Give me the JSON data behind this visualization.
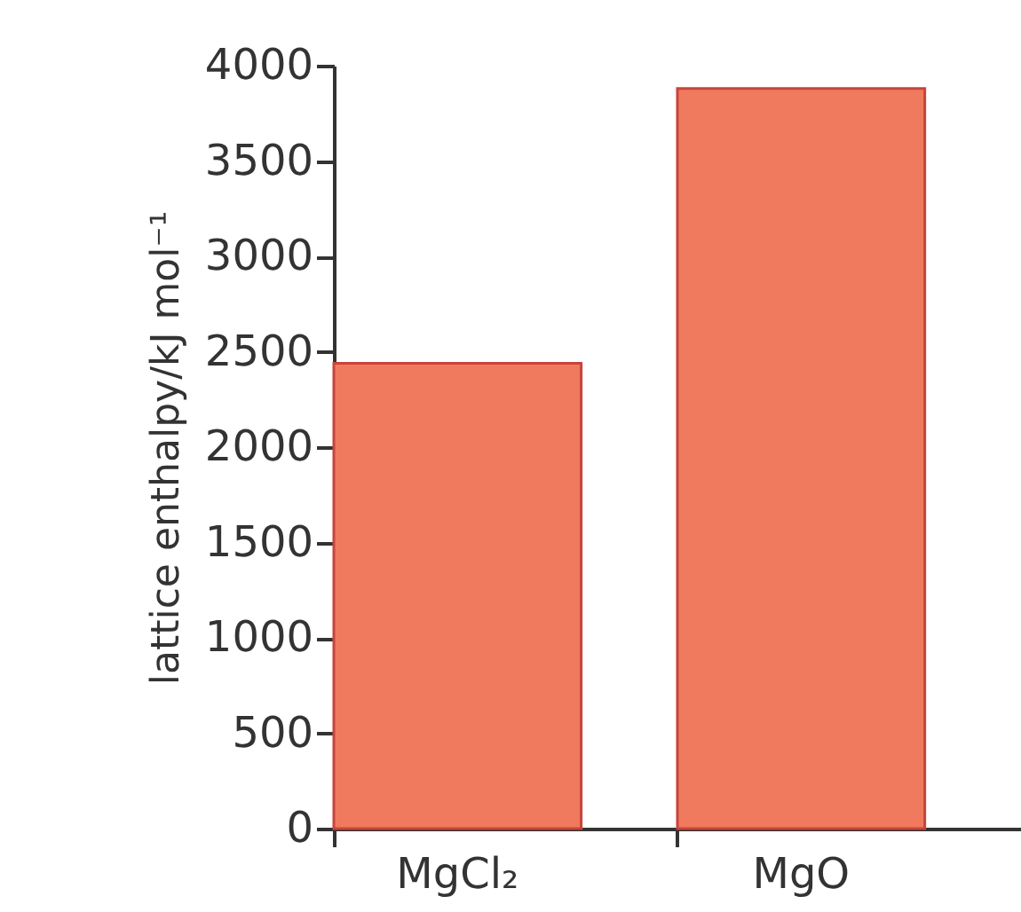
{
  "chart_data": {
    "type": "bar",
    "ylabel": "lattice enthalpy/kJ mol⁻¹",
    "categories": [
      "MgCl₂",
      "MgO"
    ],
    "values": [
      2440,
      3880
    ],
    "color": "#f07a5e",
    "ylim": [
      0,
      4000
    ],
    "yticks": [
      0,
      500,
      1000,
      1500,
      2000,
      2500,
      3000,
      3500,
      4000
    ],
    "grid": false
  }
}
